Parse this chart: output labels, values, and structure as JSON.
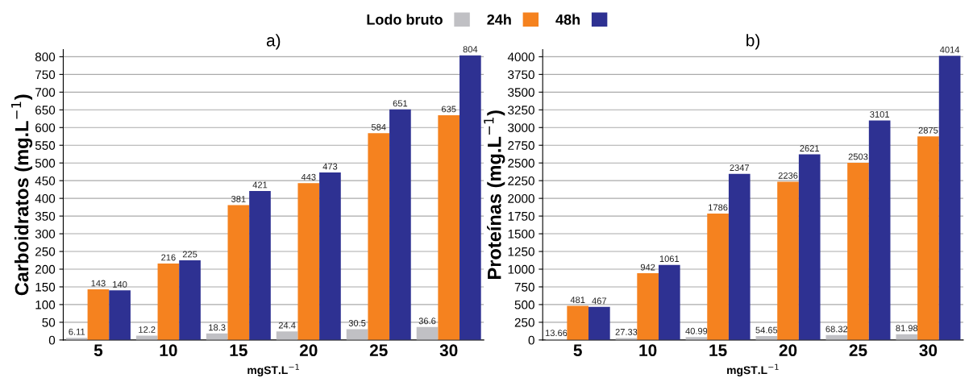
{
  "chart_data": [
    {
      "type": "bar",
      "title": "a)",
      "xlabel": "mgST.L$^{−1}$",
      "ylabel": "Carboidratos (mg.L$^{−1}$)",
      "categories": [
        "5",
        "10",
        "15",
        "20",
        "25",
        "30"
      ],
      "series": [
        {
          "name": "Lodo bruto",
          "color": "#c0c0c4",
          "values": [
            6.11,
            12.2,
            18.3,
            24.4,
            30.5,
            36.6
          ]
        },
        {
          "name": "24h",
          "color": "#f5821f",
          "values": [
            143,
            216,
            381,
            443,
            584,
            635
          ]
        },
        {
          "name": "48h",
          "color": "#2e3192",
          "values": [
            140,
            225,
            421,
            473,
            651,
            804
          ]
        }
      ],
      "ylim": [
        0,
        820
      ],
      "yticks": [
        0,
        50,
        100,
        150,
        200,
        250,
        300,
        350,
        400,
        450,
        500,
        550,
        600,
        650,
        700,
        750,
        800
      ],
      "grid": "y",
      "legend": "top",
      "data_labels": true
    },
    {
      "type": "bar",
      "title": "b)",
      "xlabel": "mgST.L$^{−1}$",
      "ylabel": "Proteínas (mg.L$^{−1}$)",
      "categories": [
        "5",
        "10",
        "15",
        "20",
        "25",
        "30"
      ],
      "series": [
        {
          "color": "#c0c0c4",
          "values": [
            13.66,
            27.33,
            40.99,
            54.65,
            68.32,
            81.98
          ]
        },
        {
          "color": "#f5821f",
          "values": [
            481,
            942,
            1786,
            2236,
            2503,
            2875
          ]
        },
        {
          "color": "#2e3192",
          "values": [
            467,
            1061,
            2347,
            2621,
            3101,
            4014
          ]
        }
      ],
      "ylim": [
        0,
        4100
      ],
      "yticks": [
        0,
        250,
        500,
        750,
        1000,
        1250,
        1500,
        1750,
        2000,
        2250,
        2500,
        2750,
        3000,
        3250,
        3500,
        3750,
        4000
      ],
      "grid": "y",
      "data_labels": true
    }
  ]
}
